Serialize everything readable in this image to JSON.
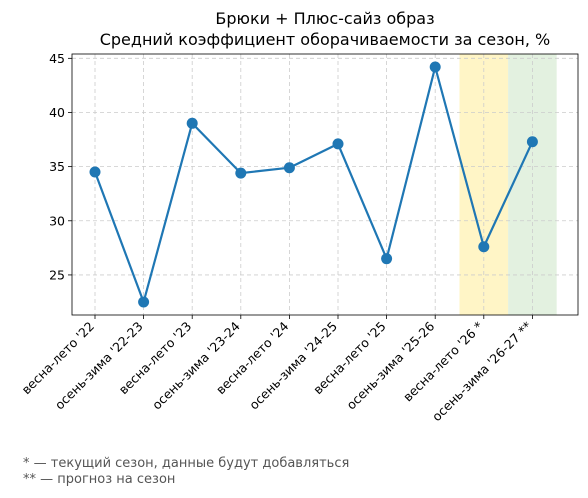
{
  "chart_data": {
    "type": "line",
    "title": "Брюки + Плюс-сайз образ",
    "subtitle": "Средний коэффициент оборачиваемости за сезон, %",
    "xlabel": "",
    "ylabel": "",
    "categories": [
      "весна-лето '22",
      "осень-зима '22-23",
      "весна-лето '23",
      "осень-зима '23-24",
      "весна-лето '24",
      "осень-зима '24-25",
      "весна-лето '25",
      "осень-зима '25-26",
      "весна-лето '26 *",
      "осень-зима '26-27 **"
    ],
    "series": [
      {
        "values": [
          34.5,
          22.5,
          39.0,
          34.4,
          34.9,
          37.1,
          26.5,
          44.2,
          27.6,
          37.3
        ],
        "color": "#1f77b4"
      }
    ],
    "ylim": [
      21.3,
      45.4
    ],
    "yticks": [
      25,
      30,
      35,
      40,
      45
    ],
    "grid": true,
    "highlights": [
      {
        "category_index": 8,
        "color": "#fff2b3"
      },
      {
        "category_index": 9,
        "color": "#d9ecd5"
      }
    ]
  },
  "footnotes": [
    "* — текущий сезон, данные будут добавляться",
    "** — прогноз на сезон"
  ]
}
